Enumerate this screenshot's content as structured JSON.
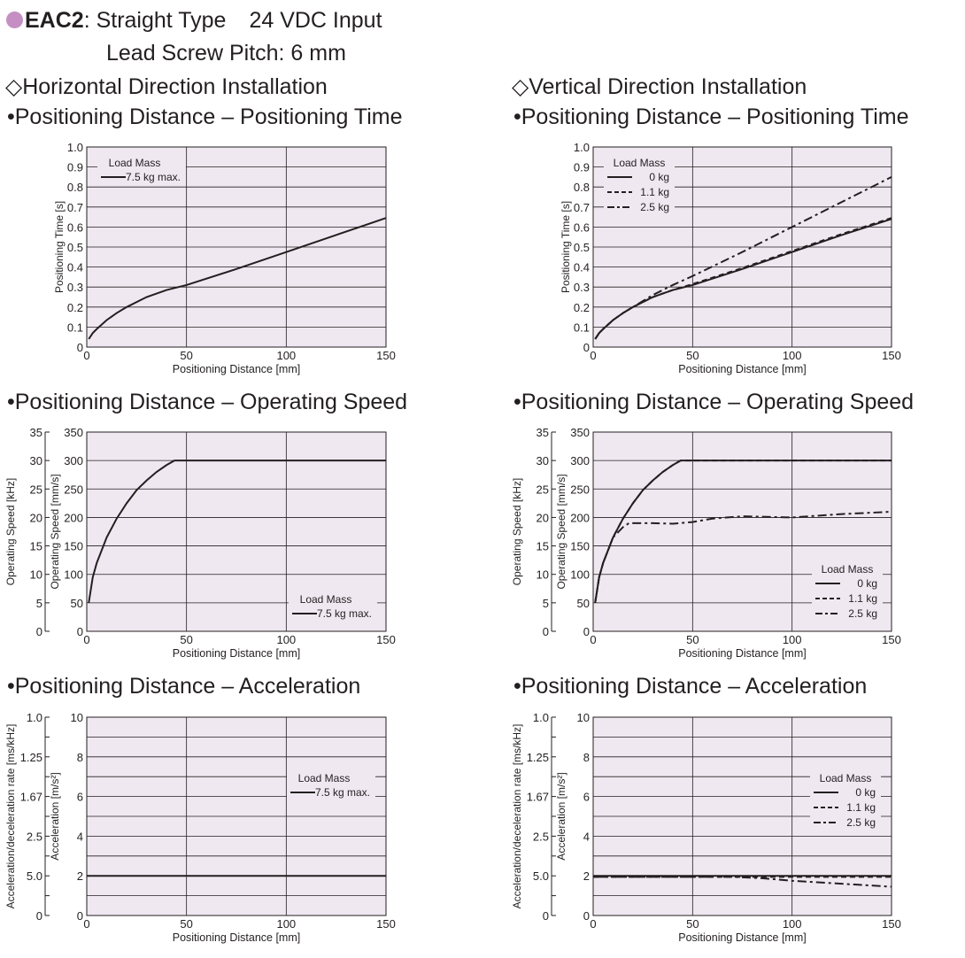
{
  "header": {
    "model": "EAC2",
    "type": ": Straight Type",
    "input": "24 VDC Input",
    "pitch": "Lead Screw Pitch: 6 mm"
  },
  "colors": {
    "bullet": "#c58fc4",
    "plot_bg": "#efe8f1",
    "line": "#231f20"
  },
  "sections": {
    "horizontal": "◇Horizontal Direction Installation",
    "vertical": "◇Vertical Direction Installation"
  },
  "chart_titles": {
    "time": "•Positioning Distance – Positioning Time",
    "speed": "•Positioning Distance – Operating Speed",
    "accel": "•Positioning Distance – Acceleration"
  },
  "chart_data": [
    {
      "id": "h-time",
      "type": "line",
      "xlabel": "Positioning Distance [mm]",
      "ylabel": "Positioning Time [s]",
      "xlim": [
        0,
        150
      ],
      "ylim": [
        0,
        1.0
      ],
      "xticks": [
        0,
        50,
        100,
        150
      ],
      "yticks": [
        0,
        0.1,
        0.2,
        0.3,
        0.4,
        0.5,
        0.6,
        0.7,
        0.8,
        0.9,
        1.0
      ],
      "ytick_labels": [
        "0",
        "0.1",
        "0.2",
        "0.3",
        "0.4",
        "0.5",
        "0.6",
        "0.7",
        "0.8",
        "0.9",
        "1.0"
      ],
      "grid": true,
      "legend_title": "Load Mass",
      "legend_pos": "top-left",
      "series": [
        {
          "name": "7.5 kg max.",
          "style": "solid",
          "x": [
            1,
            3,
            5,
            10,
            15,
            20,
            30,
            40,
            50,
            75,
            100,
            125,
            150
          ],
          "y": [
            0.04,
            0.07,
            0.09,
            0.135,
            0.17,
            0.2,
            0.25,
            0.285,
            0.31,
            0.39,
            0.475,
            0.56,
            0.645
          ]
        }
      ]
    },
    {
      "id": "v-time",
      "type": "line",
      "xlabel": "Positioning Distance [mm]",
      "ylabel": "Positioning Time [s]",
      "xlim": [
        0,
        150
      ],
      "ylim": [
        0,
        1.0
      ],
      "xticks": [
        0,
        50,
        100,
        150
      ],
      "yticks": [
        0,
        0.1,
        0.2,
        0.3,
        0.4,
        0.5,
        0.6,
        0.7,
        0.8,
        0.9,
        1.0
      ],
      "ytick_labels": [
        "0",
        "0.1",
        "0.2",
        "0.3",
        "0.4",
        "0.5",
        "0.6",
        "0.7",
        "0.8",
        "0.9",
        "1.0"
      ],
      "grid": true,
      "legend_title": "Load Mass",
      "legend_pos": "top-left",
      "series": [
        {
          "name": "0 kg",
          "style": "solid",
          "x": [
            1,
            3,
            5,
            10,
            15,
            20,
            30,
            40,
            50,
            75,
            100,
            125,
            150
          ],
          "y": [
            0.04,
            0.07,
            0.09,
            0.135,
            0.17,
            0.2,
            0.25,
            0.285,
            0.31,
            0.39,
            0.475,
            0.56,
            0.64
          ]
        },
        {
          "name": "1.1 kg",
          "style": "dashed",
          "x": [
            1,
            3,
            5,
            10,
            15,
            20,
            30,
            40,
            50,
            75,
            100,
            125,
            150
          ],
          "y": [
            0.04,
            0.07,
            0.09,
            0.135,
            0.17,
            0.2,
            0.25,
            0.285,
            0.315,
            0.395,
            0.48,
            0.565,
            0.645
          ]
        },
        {
          "name": "2.5 kg",
          "style": "dashdot",
          "x": [
            1,
            3,
            5,
            10,
            15,
            20,
            30,
            40,
            50,
            75,
            100,
            125,
            150
          ],
          "y": [
            0.04,
            0.07,
            0.09,
            0.135,
            0.17,
            0.2,
            0.26,
            0.31,
            0.355,
            0.475,
            0.6,
            0.725,
            0.85
          ]
        }
      ]
    },
    {
      "id": "h-speed",
      "type": "line",
      "xlabel": "Positioning Distance [mm]",
      "ylabel": "Operating Speed [mm/s]",
      "ylabel2": "Operating Speed [kHz]",
      "xlim": [
        0,
        150
      ],
      "ylim": [
        0,
        350
      ],
      "xticks": [
        0,
        50,
        100,
        150
      ],
      "yticks": [
        0,
        50,
        100,
        150,
        200,
        250,
        300,
        350
      ],
      "ytick_labels": [
        "0",
        "50",
        "100",
        "150",
        "200",
        "250",
        "300",
        "350"
      ],
      "y2_labels": [
        "0",
        "5",
        "10",
        "15",
        "20",
        "25",
        "30",
        "35"
      ],
      "grid": true,
      "legend_title": "Load Mass",
      "legend_pos": "bottom-right",
      "series": [
        {
          "name": "7.5 kg max.",
          "style": "solid",
          "x": [
            1,
            3,
            5,
            10,
            15,
            20,
            25,
            30,
            35,
            40,
            44,
            150
          ],
          "y": [
            50,
            95,
            120,
            165,
            198,
            225,
            248,
            265,
            280,
            292,
            300,
            300
          ]
        }
      ]
    },
    {
      "id": "v-speed",
      "type": "line",
      "xlabel": "Positioning Distance [mm]",
      "ylabel": "Operating Speed [mm/s]",
      "ylabel2": "Operating Speed [kHz]",
      "xlim": [
        0,
        150
      ],
      "ylim": [
        0,
        350
      ],
      "xticks": [
        0,
        50,
        100,
        150
      ],
      "yticks": [
        0,
        50,
        100,
        150,
        200,
        250,
        300,
        350
      ],
      "ytick_labels": [
        "0",
        "50",
        "100",
        "150",
        "200",
        "250",
        "300",
        "350"
      ],
      "y2_labels": [
        "0",
        "5",
        "10",
        "15",
        "20",
        "25",
        "30",
        "35"
      ],
      "grid": true,
      "legend_title": "Load Mass",
      "legend_pos": "bottom-right",
      "series": [
        {
          "name": "0 kg",
          "style": "solid",
          "x": [
            1,
            3,
            5,
            10,
            15,
            20,
            25,
            30,
            35,
            40,
            44,
            150
          ],
          "y": [
            50,
            95,
            120,
            165,
            198,
            225,
            248,
            265,
            280,
            292,
            300,
            300
          ]
        },
        {
          "name": "1.1 kg",
          "style": "dashed",
          "x": [
            1,
            3,
            5,
            10,
            15,
            20,
            25,
            30,
            35,
            40,
            44,
            150
          ],
          "y": [
            50,
            95,
            120,
            165,
            198,
            225,
            248,
            265,
            280,
            292,
            300,
            300
          ]
        },
        {
          "name": "2.5 kg",
          "style": "dashdot",
          "x": [
            1,
            3,
            5,
            10,
            15,
            18,
            30,
            40,
            50,
            60,
            75,
            100,
            125,
            150
          ],
          "y": [
            50,
            95,
            120,
            165,
            183,
            190,
            190,
            189,
            192,
            198,
            202,
            200,
            206,
            210
          ]
        }
      ]
    },
    {
      "id": "h-accel",
      "type": "line",
      "xlabel": "Positioning Distance [mm]",
      "ylabel": "Acceleration [m/s²]",
      "ylabel2": "Acceleration/deceleration rate [ms/kHz]",
      "xlim": [
        0,
        150
      ],
      "ylim": [
        0,
        10
      ],
      "xticks": [
        0,
        50,
        100,
        150
      ],
      "yticks": [
        0,
        1,
        2,
        3,
        4,
        5,
        6,
        7,
        8,
        9,
        10
      ],
      "ytick_labels": [
        "0",
        "",
        "2",
        "",
        "4",
        "",
        "6",
        "",
        "8",
        "",
        "10"
      ],
      "y2_labels": [
        "0",
        "",
        "5.0",
        "",
        "2.5",
        "",
        "1.67",
        "",
        "1.25",
        "",
        "1.0"
      ],
      "grid": true,
      "legend_title": "Load Mass",
      "legend_pos": "top-right",
      "series": [
        {
          "name": "7.5 kg max.",
          "style": "solid",
          "x": [
            0,
            150
          ],
          "y": [
            2,
            2
          ]
        }
      ]
    },
    {
      "id": "v-accel",
      "type": "line",
      "xlabel": "Positioning Distance [mm]",
      "ylabel": "Acceleration [m/s²]",
      "ylabel2": "Acceleration/deceleration rate [ms/kHz]",
      "xlim": [
        0,
        150
      ],
      "ylim": [
        0,
        10
      ],
      "xticks": [
        0,
        50,
        100,
        150
      ],
      "yticks": [
        0,
        1,
        2,
        3,
        4,
        5,
        6,
        7,
        8,
        9,
        10
      ],
      "ytick_labels": [
        "0",
        "",
        "2",
        "",
        "4",
        "",
        "6",
        "",
        "8",
        "",
        "10"
      ],
      "y2_labels": [
        "0",
        "",
        "5.0",
        "",
        "2.5",
        "",
        "1.67",
        "",
        "1.25",
        "",
        "1.0"
      ],
      "grid": true,
      "legend_title": "Load Mass",
      "legend_pos": "top-right",
      "series": [
        {
          "name": "0 kg",
          "style": "solid",
          "x": [
            0,
            150
          ],
          "y": [
            2,
            2
          ]
        },
        {
          "name": "1.1 kg",
          "style": "dashed",
          "x": [
            0,
            150
          ],
          "y": [
            1.95,
            1.95
          ]
        },
        {
          "name": "2.5 kg",
          "style": "dashdot",
          "x": [
            0,
            70,
            85,
            100,
            125,
            150
          ],
          "y": [
            1.95,
            1.95,
            1.88,
            1.75,
            1.6,
            1.45
          ]
        }
      ]
    }
  ]
}
